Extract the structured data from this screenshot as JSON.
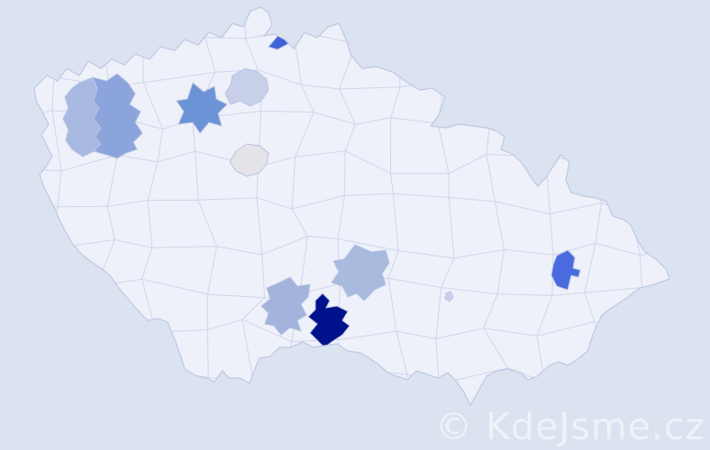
{
  "map": {
    "country": "Czech Republic",
    "type": "district choropleth",
    "colors": {
      "background": "#dbe2f0",
      "land": "#eef1f9",
      "district_border": "#ccd3ec",
      "country_outline": "#bfc8e5"
    },
    "regions": [
      {
        "id": "north-bohemia-small",
        "color": "#3e62d9",
        "intensity": "high"
      },
      {
        "id": "west-bohemia-left",
        "color": "#a8b9e2",
        "intensity": "medium-low"
      },
      {
        "id": "west-bohemia-right",
        "color": "#8ca4dc",
        "intensity": "medium"
      },
      {
        "id": "northwest-star",
        "color": "#6b93d6",
        "intensity": "medium-high"
      },
      {
        "id": "north-bohemia-light",
        "color": "#c8cfe9",
        "intensity": "low"
      },
      {
        "id": "central-bohemia-gray",
        "color": "#e4e4e8",
        "intensity": "very-low"
      },
      {
        "id": "south-bohemia-medium",
        "color": "#a3b3dc",
        "intensity": "medium-low"
      },
      {
        "id": "south-dark-navy",
        "color": "#00128b",
        "intensity": "highest"
      },
      {
        "id": "south-central-light",
        "color": "#a9badf",
        "intensity": "medium-low"
      },
      {
        "id": "east-moravia-bright",
        "color": "#4a6bdf",
        "intensity": "high"
      },
      {
        "id": "south-moravia-dot",
        "color": "#c9cfe9",
        "intensity": "low"
      }
    ]
  },
  "watermark": {
    "text": "© KdeJsme.cz",
    "color": "#f2f4fa"
  }
}
